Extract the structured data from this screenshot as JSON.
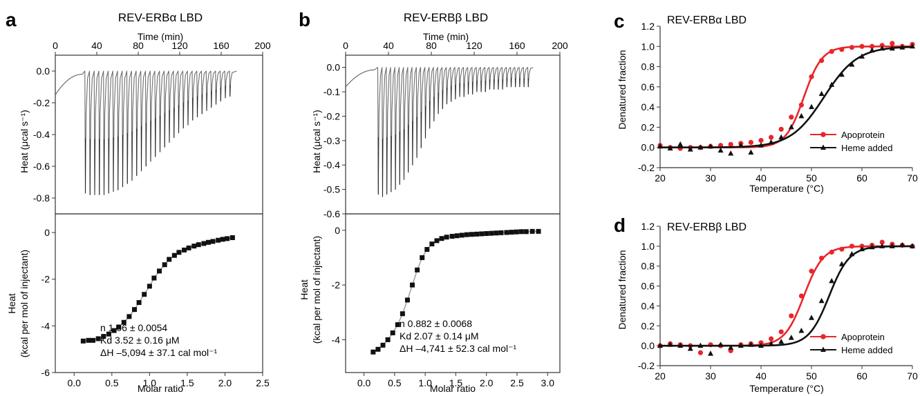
{
  "panels": {
    "a": {
      "letter": "a",
      "title": "REV-ERBα LBD",
      "top_xlabel": "Time (min)",
      "top_ylabel": "Heat (μcal s⁻¹)",
      "bottom_ylabel_1": "Heat",
      "bottom_ylabel_2": "(kcal per mol of injectant)",
      "bottom_xlabel": "Molar ratio",
      "annot_n": "n 1.06 ± 0.0054",
      "annot_kd": "Kd 3.52 ± 0.16 μM",
      "annot_dh": "ΔH –5,094 ± 37.1 cal mol⁻¹"
    },
    "b": {
      "letter": "b",
      "title": "REV-ERBβ LBD",
      "top_xlabel": "Time (min)",
      "top_ylabel": "Heat (μcal s⁻¹)",
      "bottom_ylabel_1": "Heat",
      "bottom_ylabel_2": "(kcal per mol of injectant)",
      "bottom_xlabel": "Molar ratio",
      "annot_n": "n 0.882 ± 0.0068",
      "annot_kd": "Kd 2.07 ± 0.14 μM",
      "annot_dh": "ΔH –4,741 ± 52.3 cal mol⁻¹"
    },
    "c": {
      "letter": "c",
      "title": "REV-ERBα LBD",
      "ylabel": "Denatured fraction",
      "xlabel": "Temperature (°C)",
      "legend_apo": "Apoprotein",
      "legend_heme": "Heme added"
    },
    "d": {
      "letter": "d",
      "title": "REV-ERBβ LBD",
      "ylabel": "Denatured fraction",
      "xlabel": "Temperature (°C)",
      "legend_apo": "Apoprotein",
      "legend_heme": "Heme added"
    }
  },
  "colors": {
    "apoprotein": "#e8262a",
    "heme": "#111111",
    "raw_trace": "#6d6d6d",
    "fit_line": "#999999",
    "axis": "#333333"
  },
  "chart_data": [
    {
      "id": "a_top",
      "type": "line",
      "xlabel": "Time (min)",
      "ylabel": "Heat (μcal s⁻¹)",
      "xlim": [
        0,
        200
      ],
      "ylim": [
        -0.9,
        0.1
      ],
      "xticks": [
        0,
        40,
        80,
        120,
        160,
        200
      ],
      "yticks": [
        0.0,
        -0.2,
        -0.4,
        -0.6,
        -0.8
      ],
      "baseline": {
        "start_time": 0,
        "start_value": -0.15,
        "end_time": 26,
        "end_value": -0.02
      },
      "injection_times": [
        28.5,
        33,
        37.5,
        42,
        46.5,
        51,
        55.5,
        60,
        64.5,
        69,
        73.5,
        78,
        82.5,
        87,
        91.5,
        96,
        100.5,
        105,
        109.5,
        114,
        118.5,
        123,
        127.5,
        132,
        136.5,
        141,
        145.5,
        150,
        154.5,
        159,
        163.5,
        168
      ],
      "peak_minima": [
        -0.77,
        -0.78,
        -0.78,
        -0.78,
        -0.78,
        -0.77,
        -0.76,
        -0.75,
        -0.73,
        -0.71,
        -0.69,
        -0.66,
        -0.63,
        -0.6,
        -0.57,
        -0.54,
        -0.51,
        -0.48,
        -0.45,
        -0.42,
        -0.39,
        -0.36,
        -0.34,
        -0.31,
        -0.29,
        -0.27,
        -0.25,
        -0.23,
        -0.21,
        -0.19,
        -0.17,
        -0.16
      ],
      "end_time": 175
    },
    {
      "id": "a_bottom",
      "type": "scatter",
      "xlabel": "Molar ratio",
      "ylabel": "Heat (kcal per mol of injectant)",
      "xlim": [
        -0.25,
        2.5
      ],
      "ylim": [
        -6,
        0.8
      ],
      "xticks": [
        0,
        0.5,
        1.0,
        1.5,
        2.0,
        2.5
      ],
      "yticks": [
        0,
        -2,
        -4,
        -6
      ],
      "x": [
        0.12,
        0.19,
        0.25,
        0.32,
        0.39,
        0.46,
        0.53,
        0.59,
        0.66,
        0.73,
        0.8,
        0.86,
        0.93,
        1.0,
        1.06,
        1.13,
        1.2,
        1.26,
        1.33,
        1.39,
        1.46,
        1.52,
        1.59,
        1.65,
        1.72,
        1.78,
        1.84,
        1.91,
        1.97,
        2.03,
        2.1
      ],
      "y": [
        -4.65,
        -4.62,
        -4.62,
        -4.55,
        -4.45,
        -4.35,
        -4.2,
        -4.05,
        -3.85,
        -3.6,
        -3.3,
        -3.0,
        -2.65,
        -2.3,
        -1.95,
        -1.65,
        -1.38,
        -1.15,
        -0.98,
        -0.85,
        -0.75,
        -0.66,
        -0.58,
        -0.52,
        -0.47,
        -0.42,
        -0.38,
        -0.33,
        -0.29,
        -0.26,
        -0.22
      ]
    },
    {
      "id": "b_top",
      "type": "line",
      "xlabel": "Time (min)",
      "ylabel": "Heat (μcal s⁻¹)",
      "xlim": [
        0,
        200
      ],
      "ylim": [
        -0.6,
        0.05
      ],
      "xticks": [
        0,
        40,
        80,
        120,
        160,
        200
      ],
      "yticks": [
        0.0,
        -0.1,
        -0.2,
        -0.3,
        -0.4,
        -0.5,
        -0.6
      ],
      "baseline": {
        "start_time": 0,
        "start_value": -0.08,
        "end_time": 27,
        "end_value": -0.01
      },
      "injection_times": [
        30,
        34,
        38,
        42,
        46,
        50,
        54,
        58,
        62,
        66,
        70,
        74,
        78,
        82,
        86,
        90,
        94,
        98,
        102,
        106,
        110,
        114,
        118,
        122,
        126,
        130,
        134,
        138,
        142,
        146,
        150,
        154,
        158,
        162,
        166,
        170
      ],
      "peak_minima": [
        -0.52,
        -0.53,
        -0.52,
        -0.51,
        -0.5,
        -0.48,
        -0.46,
        -0.43,
        -0.4,
        -0.37,
        -0.33,
        -0.29,
        -0.25,
        -0.22,
        -0.19,
        -0.17,
        -0.15,
        -0.14,
        -0.13,
        -0.12,
        -0.12,
        -0.11,
        -0.11,
        -0.1,
        -0.1,
        -0.1,
        -0.09,
        -0.09,
        -0.09,
        -0.09,
        -0.08,
        -0.08,
        -0.08,
        -0.08,
        -0.08,
        -0.08
      ],
      "end_time": 175
    },
    {
      "id": "b_bottom",
      "type": "scatter",
      "xlabel": "Molar ratio",
      "ylabel": "Heat (kcal per mol of injectant)",
      "xlim": [
        -0.3,
        3.2
      ],
      "ylim": [
        -5.2,
        0.6
      ],
      "xticks": [
        0,
        0.5,
        1.0,
        1.5,
        2.0,
        2.5,
        3.0
      ],
      "yticks": [
        0,
        -2,
        -4
      ],
      "x": [
        0.15,
        0.23,
        0.31,
        0.39,
        0.47,
        0.55,
        0.63,
        0.71,
        0.79,
        0.87,
        0.95,
        1.03,
        1.11,
        1.19,
        1.27,
        1.35,
        1.44,
        1.52,
        1.6,
        1.68,
        1.76,
        1.84,
        1.92,
        2.0,
        2.08,
        2.16,
        2.24,
        2.33,
        2.41,
        2.49,
        2.57,
        2.65,
        2.75,
        2.85
      ],
      "y": [
        -4.45,
        -4.35,
        -4.2,
        -4.0,
        -3.75,
        -3.45,
        -3.05,
        -2.55,
        -2.0,
        -1.45,
        -1.0,
        -0.7,
        -0.5,
        -0.38,
        -0.3,
        -0.25,
        -0.22,
        -0.2,
        -0.18,
        -0.16,
        -0.15,
        -0.14,
        -0.13,
        -0.12,
        -0.11,
        -0.1,
        -0.09,
        -0.08,
        -0.07,
        -0.06,
        -0.05,
        -0.05,
        -0.04,
        -0.04
      ]
    },
    {
      "id": "c",
      "type": "scatter",
      "title": "REV-ERBα LBD",
      "xlabel": "Temperature (°C)",
      "ylabel": "Denatured fraction",
      "xlim": [
        20,
        70
      ],
      "ylim": [
        -0.2,
        1.2
      ],
      "xticks": [
        20,
        30,
        40,
        50,
        60,
        70
      ],
      "yticks": [
        -0.2,
        0,
        0.2,
        0.4,
        0.6,
        0.8,
        1.0,
        1.2
      ],
      "legend": "bottom-right",
      "series": [
        {
          "name": "Apoprotein",
          "x": [
            20,
            22,
            24,
            26,
            28,
            30,
            32,
            34,
            36,
            38,
            40,
            42,
            44,
            46,
            48,
            50,
            52,
            54,
            56,
            58,
            60,
            62,
            64,
            66,
            68,
            70
          ],
          "y": [
            0.02,
            0.0,
            -0.01,
            0.0,
            0.0,
            0.01,
            0.02,
            0.03,
            0.04,
            0.05,
            0.07,
            0.1,
            0.18,
            0.3,
            0.42,
            0.7,
            0.86,
            0.95,
            0.97,
            0.99,
            1.0,
            1.0,
            1.01,
            1.03,
            1.0,
            1.02
          ],
          "fit_midpoint": 48.5,
          "fit_slope": 1.8
        },
        {
          "name": "Heme added",
          "x": [
            20,
            22,
            24,
            26,
            28,
            30,
            32,
            34,
            36,
            38,
            40,
            42,
            44,
            46,
            48,
            50,
            52,
            54,
            56,
            58,
            60,
            62,
            64,
            66,
            68,
            70
          ],
          "y": [
            0.01,
            -0.01,
            0.03,
            -0.02,
            0.0,
            0.01,
            -0.03,
            -0.06,
            0.02,
            -0.05,
            0.02,
            0.05,
            0.1,
            0.2,
            0.31,
            0.4,
            0.53,
            0.62,
            0.72,
            0.82,
            0.9,
            0.96,
            0.98,
            0.98,
            0.99,
            1.0
          ],
          "fit_midpoint": 52.5,
          "fit_slope": 3.3
        }
      ]
    },
    {
      "id": "d",
      "type": "scatter",
      "title": "REV-ERBβ LBD",
      "xlabel": "Temperature (°C)",
      "ylabel": "Denatured fraction",
      "xlim": [
        20,
        70
      ],
      "ylim": [
        -0.2,
        1.2
      ],
      "xticks": [
        20,
        30,
        40,
        50,
        60,
        70
      ],
      "yticks": [
        -0.2,
        0,
        0.2,
        0.4,
        0.6,
        0.8,
        1.0,
        1.2
      ],
      "legend": "bottom-right",
      "series": [
        {
          "name": "Apoprotein",
          "x": [
            20,
            22,
            24,
            26,
            28,
            30,
            32,
            34,
            36,
            38,
            40,
            42,
            44,
            46,
            48,
            50,
            52,
            54,
            56,
            58,
            60,
            62,
            64,
            66,
            68,
            70
          ],
          "y": [
            0.0,
            0.02,
            0.01,
            0.0,
            -0.07,
            0.01,
            0.0,
            -0.05,
            0.01,
            0.02,
            0.03,
            0.07,
            0.14,
            0.3,
            0.5,
            0.75,
            0.88,
            0.94,
            0.97,
            1.0,
            1.0,
            1.01,
            1.04,
            1.02,
            1.01,
            1.0
          ],
          "fit_midpoint": 48.5,
          "fit_slope": 1.9
        },
        {
          "name": "Heme added",
          "x": [
            20,
            22,
            24,
            26,
            28,
            30,
            32,
            34,
            36,
            38,
            40,
            42,
            44,
            46,
            48,
            50,
            52,
            54,
            56,
            58,
            60,
            62,
            64,
            66,
            68,
            70
          ],
          "y": [
            0.0,
            0.01,
            0.0,
            -0.03,
            0.0,
            -0.08,
            0.01,
            -0.02,
            0.0,
            0.01,
            0.0,
            0.02,
            0.04,
            0.08,
            0.15,
            0.28,
            0.45,
            0.65,
            0.82,
            0.92,
            0.97,
            0.99,
            1.0,
            1.0,
            1.01,
            1.0
          ],
          "fit_midpoint": 53.5,
          "fit_slope": 2.0
        }
      ]
    }
  ]
}
